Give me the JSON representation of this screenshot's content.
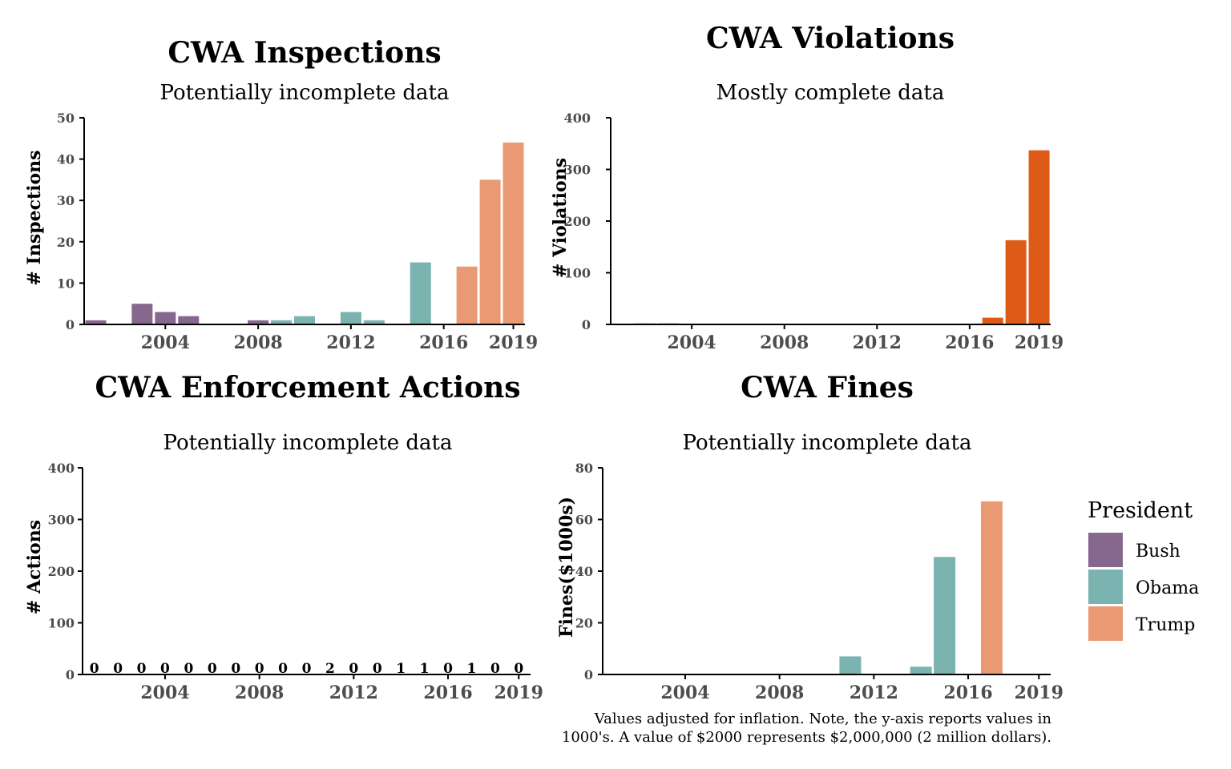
{
  "chart_data": [
    {
      "type": "bar",
      "title": "CWA Inspections",
      "subtitle": "Potentially incomplete data",
      "xlabel": "",
      "ylabel": "# Inspections",
      "ylim": [
        0,
        50
      ],
      "yticks": [
        0,
        10,
        20,
        30,
        40,
        50
      ],
      "xticks": [
        2004,
        2008,
        2012,
        2016,
        2019
      ],
      "xlim": [
        2000.5,
        2019.5
      ],
      "bars": [
        {
          "year": 2001,
          "value": 1,
          "president": "Bush"
        },
        {
          "year": 2003,
          "value": 5,
          "president": "Bush"
        },
        {
          "year": 2004,
          "value": 3,
          "president": "Bush"
        },
        {
          "year": 2005,
          "value": 2,
          "president": "Bush"
        },
        {
          "year": 2008,
          "value": 1,
          "president": "Bush"
        },
        {
          "year": 2009,
          "value": 1,
          "president": "Obama"
        },
        {
          "year": 2010,
          "value": 2,
          "president": "Obama"
        },
        {
          "year": 2012,
          "value": 3,
          "president": "Obama"
        },
        {
          "year": 2013,
          "value": 1,
          "president": "Obama"
        },
        {
          "year": 2015,
          "value": 15,
          "president": "Obama"
        },
        {
          "year": 2017,
          "value": 14,
          "president": "Trump"
        },
        {
          "year": 2018,
          "value": 35,
          "president": "Trump"
        },
        {
          "year": 2019,
          "value": 44,
          "president": "Trump"
        }
      ]
    },
    {
      "type": "bar",
      "title": "CWA Violations",
      "subtitle": "Mostly complete data",
      "xlabel": "",
      "ylabel": "# Violations",
      "ylim": [
        0,
        400
      ],
      "yticks": [
        0,
        100,
        200,
        300,
        400
      ],
      "xticks": [
        2004,
        2008,
        2012,
        2016,
        2019
      ],
      "xlim": [
        2000.5,
        2019.5
      ],
      "bars": [
        {
          "year": 2002,
          "value": 2
        },
        {
          "year": 2003,
          "value": 2
        },
        {
          "year": 2004,
          "value": 1
        },
        {
          "year": 2005,
          "value": 1
        },
        {
          "year": 2006,
          "value": 1
        },
        {
          "year": 2007,
          "value": 1
        },
        {
          "year": 2008,
          "value": 1
        },
        {
          "year": 2009,
          "value": 1
        },
        {
          "year": 2010,
          "value": 1
        },
        {
          "year": 2011,
          "value": 1
        },
        {
          "year": 2012,
          "value": 1
        },
        {
          "year": 2013,
          "value": 1
        },
        {
          "year": 2014,
          "value": 1
        },
        {
          "year": 2015,
          "value": 1
        },
        {
          "year": 2016,
          "value": 1
        },
        {
          "year": 2017,
          "value": 13
        },
        {
          "year": 2018,
          "value": 163
        },
        {
          "year": 2019,
          "value": 337
        }
      ]
    },
    {
      "type": "bar",
      "title": "CWA Enforcement Actions",
      "subtitle": "Potentially incomplete data",
      "xlabel": "",
      "ylabel": "# Actions",
      "ylim": [
        0,
        400
      ],
      "yticks": [
        0,
        100,
        200,
        300,
        400
      ],
      "xticks": [
        2004,
        2008,
        2012,
        2016,
        2019
      ],
      "xlim": [
        2000.5,
        2019.5
      ],
      "bars": [
        {
          "year": 2001,
          "value": 0
        },
        {
          "year": 2002,
          "value": 0
        },
        {
          "year": 2003,
          "value": 0
        },
        {
          "year": 2004,
          "value": 0
        },
        {
          "year": 2005,
          "value": 0
        },
        {
          "year": 2006,
          "value": 0
        },
        {
          "year": 2007,
          "value": 0
        },
        {
          "year": 2008,
          "value": 0
        },
        {
          "year": 2009,
          "value": 0
        },
        {
          "year": 2010,
          "value": 0
        },
        {
          "year": 2011,
          "value": 2
        },
        {
          "year": 2012,
          "value": 0
        },
        {
          "year": 2013,
          "value": 0
        },
        {
          "year": 2014,
          "value": 1
        },
        {
          "year": 2015,
          "value": 1
        },
        {
          "year": 2016,
          "value": 0
        },
        {
          "year": 2017,
          "value": 1
        },
        {
          "year": 2018,
          "value": 0
        },
        {
          "year": 2019,
          "value": 0
        }
      ],
      "data_labels": [
        "0",
        "0",
        "0",
        "0",
        "0",
        "0",
        "0",
        "0",
        "0",
        "0",
        "2",
        "0",
        "0",
        "1",
        "1",
        "0",
        "1",
        "0",
        "0"
      ]
    },
    {
      "type": "bar",
      "title": "CWA Fines",
      "subtitle": "Potentially incomplete data",
      "xlabel": "",
      "ylabel": "Fines($1000s)",
      "ylim": [
        0,
        80
      ],
      "yticks": [
        0,
        20,
        40,
        60,
        80
      ],
      "xticks": [
        2004,
        2008,
        2012,
        2016,
        2019
      ],
      "xlim": [
        2000.5,
        2019.5
      ],
      "bars": [
        {
          "year": 2011,
          "value": 7,
          "president": "Obama"
        },
        {
          "year": 2014,
          "value": 3,
          "president": "Obama"
        },
        {
          "year": 2015,
          "value": 45.5,
          "president": "Obama"
        },
        {
          "year": 2017,
          "value": 67,
          "president": "Trump"
        }
      ],
      "caption": [
        "Values adjusted for inflation. Note, the y-axis reports values in",
        "1000's. A value of $2000 represents $2,000,000 (2 million dollars)."
      ]
    }
  ],
  "legend": {
    "title": "President",
    "placement": "right",
    "items": [
      {
        "label": "Bush",
        "color": "#86688f"
      },
      {
        "label": "Obama",
        "color": "#7ab3b0"
      },
      {
        "label": "Trump",
        "color": "#e99a72"
      }
    ]
  },
  "colors": {
    "Bush": "#86688f",
    "Obama": "#7ab3b0",
    "Trump": "#e99a72",
    "violations": "#dd5a17"
  }
}
